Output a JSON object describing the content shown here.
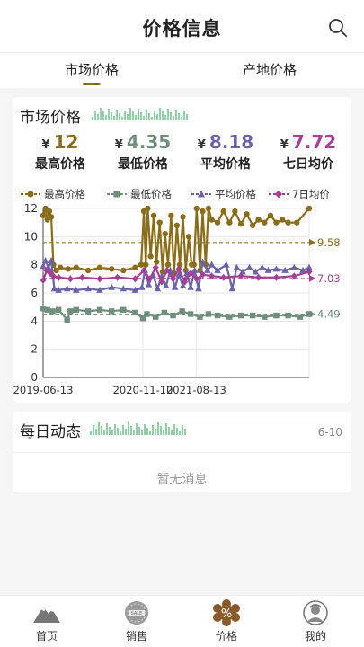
{
  "header": {
    "title": "价格信息"
  },
  "tabs": [
    {
      "label": "市场价格"
    },
    {
      "label": "产地价格"
    }
  ],
  "market_card": {
    "title": "市场价格",
    "currency": "¥",
    "stats": [
      {
        "value": "12",
        "label": "最高价格",
        "color": "#8a6d1a"
      },
      {
        "value": "4.35",
        "label": "最低价格",
        "color": "#6f8f7c"
      },
      {
        "value": "8.18",
        "label": "平均价格",
        "color": "#6a63a8"
      },
      {
        "value": "7.72",
        "label": "七日均价",
        "color": "#a73f95"
      }
    ]
  },
  "chart_data": {
    "type": "line",
    "legend_position": "top",
    "grid": true,
    "ylim": [
      0,
      12
    ],
    "yticks": [
      "0",
      "2",
      "4",
      "6",
      "8",
      "10",
      "12"
    ],
    "xticks": [
      {
        "label": "2019-06-13",
        "date": "2019-06-13"
      },
      {
        "label": "2020-11-10",
        "date": "2020-11-10"
      },
      {
        "label": "2021-08-13",
        "date": "2021-08-13"
      }
    ],
    "x_range": [
      "2019-06-13",
      "2023-03-20"
    ],
    "series": [
      {
        "name": "最高价格",
        "color": "#8a6d1a",
        "marker": "circle",
        "points": [
          [
            "2019-06-13",
            11.5
          ],
          [
            "2019-06-25",
            12
          ],
          [
            "2019-07-05",
            11.2
          ],
          [
            "2019-07-15",
            11.8
          ],
          [
            "2019-07-25",
            11.4
          ],
          [
            "2019-08-05",
            8
          ],
          [
            "2019-08-20",
            7.6
          ],
          [
            "2019-09-10",
            7.8
          ],
          [
            "2019-10-20",
            7.7
          ],
          [
            "2019-12-01",
            7.8
          ],
          [
            "2020-02-01",
            7.6
          ],
          [
            "2020-04-01",
            7.8
          ],
          [
            "2020-06-01",
            7.7
          ],
          [
            "2020-08-01",
            7.6
          ],
          [
            "2020-10-01",
            7.8
          ],
          [
            "2020-11-01",
            8
          ],
          [
            "2020-11-15",
            11.8
          ],
          [
            "2020-11-25",
            8
          ],
          [
            "2020-12-05",
            12
          ],
          [
            "2020-12-20",
            8.6
          ],
          [
            "2021-01-05",
            11.5
          ],
          [
            "2021-01-20",
            8.2
          ],
          [
            "2021-02-05",
            11
          ],
          [
            "2021-02-20",
            7.5
          ],
          [
            "2021-03-05",
            10.2
          ],
          [
            "2021-03-20",
            8
          ],
          [
            "2021-04-05",
            11.5
          ],
          [
            "2021-04-20",
            7.4
          ],
          [
            "2021-05-05",
            10.8
          ],
          [
            "2021-05-20",
            8
          ],
          [
            "2021-06-05",
            11.4
          ],
          [
            "2021-06-20",
            7.6
          ],
          [
            "2021-07-05",
            10
          ],
          [
            "2021-07-20",
            8
          ],
          [
            "2021-08-01",
            8
          ],
          [
            "2021-08-15",
            12
          ],
          [
            "2021-09-01",
            7.6
          ],
          [
            "2021-09-15",
            11.8
          ],
          [
            "2021-10-01",
            8
          ],
          [
            "2021-10-15",
            12
          ],
          [
            "2021-11-01",
            11.2
          ],
          [
            "2021-12-01",
            11
          ],
          [
            "2022-01-01",
            11.8
          ],
          [
            "2022-02-01",
            11
          ],
          [
            "2022-03-01",
            11.8
          ],
          [
            "2022-04-01",
            10.9
          ],
          [
            "2022-05-01",
            11.6
          ],
          [
            "2022-06-01",
            10.8
          ],
          [
            "2022-07-01",
            11.2
          ],
          [
            "2022-08-01",
            11
          ],
          [
            "2022-09-01",
            11.5
          ],
          [
            "2022-10-01",
            11
          ],
          [
            "2022-11-01",
            11.2
          ],
          [
            "2022-12-01",
            11
          ],
          [
            "2023-01-15",
            11
          ],
          [
            "2023-03-20",
            12
          ]
        ]
      },
      {
        "name": "最低价格",
        "color": "#6f8f7c",
        "marker": "square",
        "points": [
          [
            "2019-06-13",
            4.9
          ],
          [
            "2019-07-05",
            4.8
          ],
          [
            "2019-08-01",
            4.7
          ],
          [
            "2019-09-01",
            4.8
          ],
          [
            "2019-10-15",
            4.1
          ],
          [
            "2019-11-01",
            4.7
          ],
          [
            "2019-12-01",
            4.8
          ],
          [
            "2020-02-01",
            4.7
          ],
          [
            "2020-04-01",
            4.8
          ],
          [
            "2020-06-01",
            4.7
          ],
          [
            "2020-08-01",
            4.8
          ],
          [
            "2020-10-01",
            4.6
          ],
          [
            "2020-11-10",
            4.2
          ],
          [
            "2020-12-01",
            4.5
          ],
          [
            "2021-01-15",
            4.3
          ],
          [
            "2021-03-01",
            4.6
          ],
          [
            "2021-04-15",
            4.4
          ],
          [
            "2021-06-01",
            4.7
          ],
          [
            "2021-07-15",
            4.5
          ],
          [
            "2021-09-01",
            4.3
          ],
          [
            "2021-10-15",
            4.5
          ],
          [
            "2021-12-01",
            4.4
          ],
          [
            "2022-02-01",
            4.3
          ],
          [
            "2022-04-01",
            4.4
          ],
          [
            "2022-06-01",
            4.4
          ],
          [
            "2022-08-01",
            4.3
          ],
          [
            "2022-10-01",
            4.4
          ],
          [
            "2022-12-01",
            4.4
          ],
          [
            "2023-02-01",
            4.3
          ],
          [
            "2023-03-20",
            4.5
          ]
        ]
      },
      {
        "name": "平均价格",
        "color": "#6a63a8",
        "marker": "triangle",
        "points": [
          [
            "2019-06-13",
            7.9
          ],
          [
            "2019-06-25",
            8.3
          ],
          [
            "2019-07-10",
            7.8
          ],
          [
            "2019-07-25",
            8.3
          ],
          [
            "2019-08-10",
            6.3
          ],
          [
            "2019-09-01",
            6.2
          ],
          [
            "2019-10-15",
            6.3
          ],
          [
            "2019-12-01",
            6.2
          ],
          [
            "2020-02-01",
            6.3
          ],
          [
            "2020-04-01",
            6.2
          ],
          [
            "2020-06-01",
            6.4
          ],
          [
            "2020-08-01",
            6.3
          ],
          [
            "2020-10-01",
            6.2
          ],
          [
            "2020-11-05",
            6.4
          ],
          [
            "2020-11-20",
            7.6
          ],
          [
            "2020-12-10",
            6.6
          ],
          [
            "2021-01-01",
            7.3
          ],
          [
            "2021-01-25",
            6.3
          ],
          [
            "2021-02-15",
            7.2
          ],
          [
            "2021-03-10",
            6.5
          ],
          [
            "2021-04-01",
            7.6
          ],
          [
            "2021-04-25",
            6.4
          ],
          [
            "2021-05-15",
            7.3
          ],
          [
            "2021-06-05",
            6.5
          ],
          [
            "2021-06-25",
            7.4
          ],
          [
            "2021-07-15",
            6.4
          ],
          [
            "2021-08-05",
            7.6
          ],
          [
            "2021-08-25",
            6.3
          ],
          [
            "2021-09-15",
            8.2
          ],
          [
            "2021-10-10",
            7.6
          ],
          [
            "2021-11-01",
            8
          ],
          [
            "2021-12-01",
            7.6
          ],
          [
            "2022-01-15",
            8
          ],
          [
            "2022-02-15",
            6.3
          ],
          [
            "2022-03-10",
            7.8
          ],
          [
            "2022-04-10",
            7.5
          ],
          [
            "2022-05-15",
            7.8
          ],
          [
            "2022-06-15",
            7.5
          ],
          [
            "2022-07-20",
            7.8
          ],
          [
            "2022-08-20",
            7.6
          ],
          [
            "2022-10-01",
            7.7
          ],
          [
            "2022-11-15",
            7.6
          ],
          [
            "2023-01-01",
            7.8
          ],
          [
            "2023-02-15",
            7.6
          ],
          [
            "2023-03-20",
            7.8
          ]
        ]
      },
      {
        "name": "7日均价",
        "color": "#a73f95",
        "marker": "diamond",
        "points": [
          [
            "2019-06-13",
            6.9
          ],
          [
            "2019-07-01",
            7.6
          ],
          [
            "2019-07-20",
            7.4
          ],
          [
            "2019-08-05",
            7.2
          ],
          [
            "2019-09-01",
            7.1
          ],
          [
            "2019-11-01",
            7
          ],
          [
            "2020-01-01",
            7.1
          ],
          [
            "2020-04-01",
            7
          ],
          [
            "2020-07-01",
            7.1
          ],
          [
            "2020-10-01",
            7
          ],
          [
            "2020-11-15",
            7.6
          ],
          [
            "2020-12-15",
            7
          ],
          [
            "2021-01-15",
            7.8
          ],
          [
            "2021-02-15",
            6.8
          ],
          [
            "2021-03-15",
            7.6
          ],
          [
            "2021-04-15",
            7
          ],
          [
            "2021-05-15",
            7.7
          ],
          [
            "2021-06-15",
            6.8
          ],
          [
            "2021-07-15",
            7.4
          ],
          [
            "2021-08-15",
            7
          ],
          [
            "2021-09-15",
            7.3
          ],
          [
            "2021-11-01",
            7.2
          ],
          [
            "2022-01-01",
            7.1
          ],
          [
            "2022-04-01",
            7.2
          ],
          [
            "2022-07-01",
            7.1
          ],
          [
            "2022-10-01",
            7.1
          ],
          [
            "2023-01-01",
            7.2
          ],
          [
            "2023-03-20",
            7.5
          ]
        ]
      }
    ],
    "mark_lines": [
      {
        "label": "9.58",
        "value": 9.58,
        "color": "#8a6d1a"
      },
      {
        "label": "7.03",
        "value": 7.03,
        "color": "#a73f95"
      },
      {
        "label": "4.49",
        "value": 4.49,
        "color": "#6f8f7c"
      }
    ]
  },
  "daily_card": {
    "title": "每日动态",
    "date": "6-10",
    "empty_text": "暂无消息"
  },
  "nav": [
    {
      "label": "首页"
    },
    {
      "label": "销售"
    },
    {
      "label": "价格"
    },
    {
      "label": "我的"
    }
  ],
  "icons": {
    "search": "search-icon",
    "home": "mountain-icon",
    "sales": "sale-tag-icon",
    "price": "percent-icon",
    "mine": "user-avatar-icon"
  }
}
